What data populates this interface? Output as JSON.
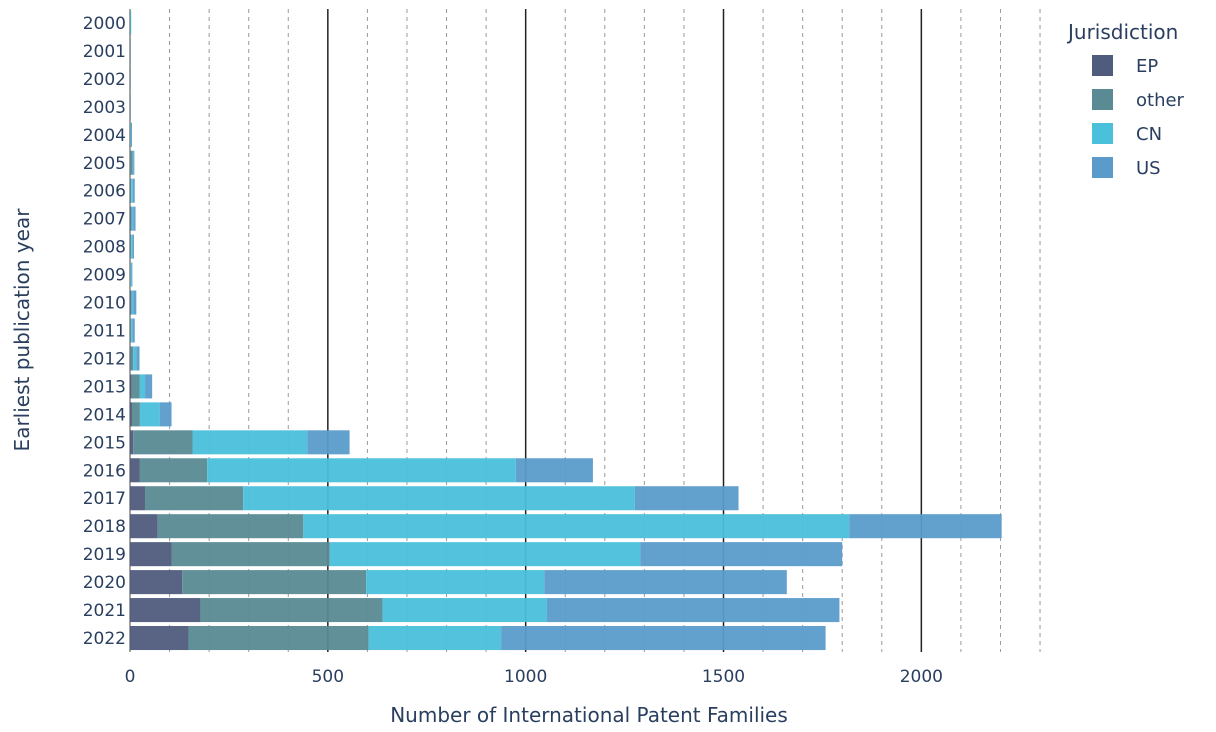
{
  "chart_data": {
    "type": "bar",
    "orientation": "horizontal",
    "barmode": "stack",
    "xlabel": "Number of International Patent Families",
    "ylabel": "Earliest publication year",
    "xlim": [
      0,
      2310
    ],
    "xticks": [
      0,
      500,
      1000,
      1500,
      2000
    ],
    "xtick_labels": [
      "0",
      "500",
      "1000",
      "1500",
      "2000"
    ],
    "grid": "solid lines at 500-unit major ticks, dashed minor lines every 100",
    "categories": [
      "2000",
      "2001",
      "2002",
      "2003",
      "2004",
      "2005",
      "2006",
      "2007",
      "2008",
      "2009",
      "2010",
      "2011",
      "2012",
      "2013",
      "2014",
      "2015",
      "2016",
      "2017",
      "2018",
      "2019",
      "2020",
      "2021",
      "2022"
    ],
    "series": [
      {
        "name": "EP",
        "color": "#505C7D",
        "values": [
          0,
          0,
          0,
          0,
          0,
          0,
          0,
          1,
          0,
          0,
          1,
          0,
          2,
          4,
          5,
          8,
          25,
          38,
          70,
          105,
          132,
          178,
          148
        ]
      },
      {
        "name": "other",
        "color": "#5A8A94",
        "values": [
          1,
          1,
          1,
          1,
          2,
          7,
          3,
          3,
          3,
          2,
          3,
          3,
          6,
          20,
          20,
          150,
          170,
          248,
          368,
          400,
          465,
          460,
          455
        ]
      },
      {
        "name": "CN",
        "color": "#4AC0DB",
        "values": [
          1,
          0,
          0,
          0,
          1,
          2,
          4,
          4,
          3,
          2,
          4,
          3,
          8,
          14,
          50,
          290,
          780,
          990,
          1380,
          785,
          450,
          415,
          335
        ]
      },
      {
        "name": "US",
        "color": "#5A9BCB",
        "values": [
          0,
          0,
          0,
          0,
          1,
          1,
          5,
          6,
          4,
          2,
          8,
          6,
          8,
          18,
          30,
          107,
          195,
          262,
          385,
          510,
          613,
          740,
          820
        ]
      }
    ],
    "legend": {
      "title": "Jurisdiction",
      "position": "top-right"
    }
  }
}
